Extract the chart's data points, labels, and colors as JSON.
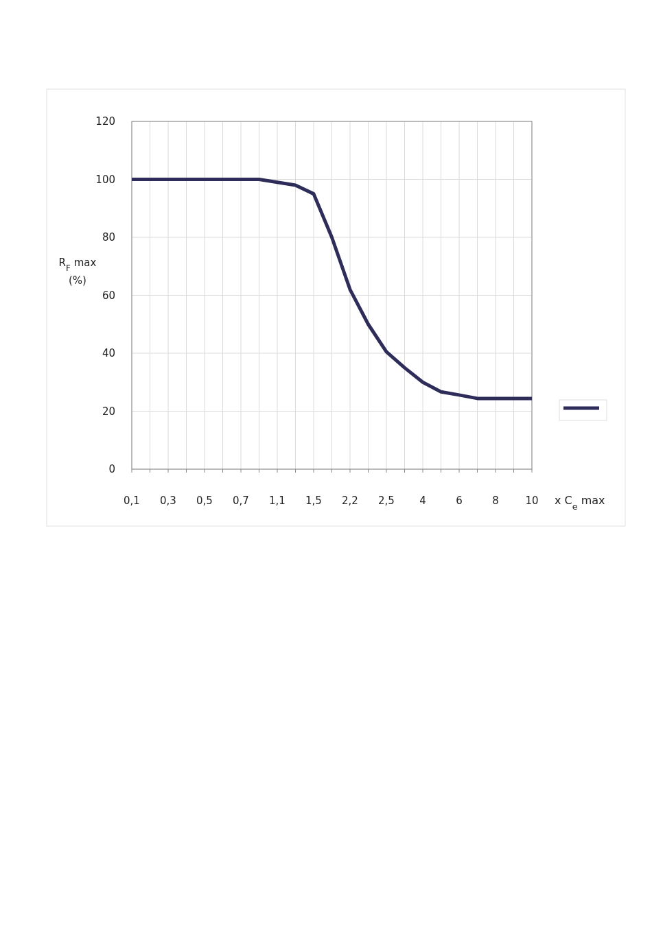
{
  "chart_data": {
    "type": "line",
    "xlabel": "x C$_{e}$ max",
    "ylabel": "R$_{F}$ max (%)",
    "categories": [
      "0,1",
      null,
      "0,3",
      null,
      "0,5",
      null,
      "0,7",
      null,
      "1,1",
      null,
      "1,5",
      null,
      "2,2",
      null,
      "2,5",
      null,
      "4",
      null,
      "6",
      null,
      "8",
      null,
      "10"
    ],
    "series": [
      {
        "color": "#2e2d5a",
        "values": [
          100,
          100,
          100,
          100,
          100,
          100,
          100,
          100,
          99,
          98,
          95,
          80,
          62,
          50,
          40.5,
          35,
          30,
          26.7,
          25.6,
          24.4,
          24.4,
          24.4,
          24.4
        ]
      }
    ],
    "ylim": [
      0,
      120
    ],
    "yticks": [
      0,
      20,
      40,
      60,
      80,
      100,
      120
    ],
    "grid": true,
    "marker": "none",
    "line_style": "solid"
  }
}
